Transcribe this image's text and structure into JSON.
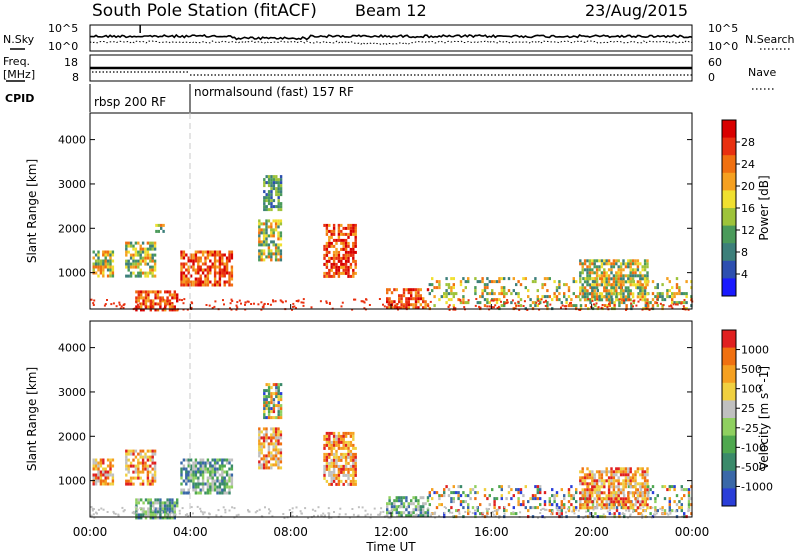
{
  "header": {
    "station": "South Pole Station (fitACF)",
    "beam": "Beam 12",
    "date": "23/Aug/2015"
  },
  "left_labels": {
    "nsky": "N.Sky",
    "freq": "Freq.",
    "freq_unit": "[MHz]",
    "cpid": "CPID"
  },
  "right_labels": {
    "nsearch": "N.Search",
    "nave": "Nave"
  },
  "noise_axis": {
    "top": "10^5",
    "bottom": "10^0"
  },
  "freq_axis": {
    "left_top": "18",
    "left_bottom": "8",
    "right_top": "60",
    "right_bottom": "0"
  },
  "cpid_segments": [
    {
      "label": "rbsp 200 RF",
      "start_hour": 0
    },
    {
      "label": "normalsound (fast) 157 RF",
      "start_hour": 4
    }
  ],
  "xaxis": {
    "title": "Time UT",
    "ticks": [
      "00:00",
      "04:00",
      "08:00",
      "12:00",
      "16:00",
      "20:00",
      "00:00"
    ]
  },
  "chart_data": [
    {
      "type": "heatmap",
      "title": "Power",
      "ylabel": "Slant Range [km]",
      "xlabel": "Time UT",
      "xlim_hours": [
        0,
        24
      ],
      "ylim": [
        180,
        4600
      ],
      "yticks": [
        1000,
        2000,
        3000,
        4000
      ],
      "colorbar": {
        "label": "Power [dB]",
        "ticks": [
          "28",
          "24",
          "20",
          "16",
          "12",
          "8",
          "4"
        ],
        "colors": [
          "#1a1aff",
          "#2d4fb0",
          "#3c7f7a",
          "#4a9a5a",
          "#9ec33a",
          "#f0e030",
          "#f5a020",
          "#f07010",
          "#e83010",
          "#d80000"
        ]
      },
      "echo_regions": [
        {
          "t0": 0.1,
          "t1": 0.9,
          "r0": 900,
          "r1": 1500,
          "level": "mid"
        },
        {
          "t0": 1.4,
          "t1": 2.6,
          "r0": 900,
          "r1": 1700,
          "level": "mid"
        },
        {
          "t0": 2.6,
          "t1": 2.9,
          "r0": 1900,
          "r1": 2100,
          "level": "mid"
        },
        {
          "t0": 3.6,
          "t1": 5.7,
          "r0": 700,
          "r1": 1500,
          "level": "high"
        },
        {
          "t0": 1.8,
          "t1": 3.5,
          "r0": 180,
          "r1": 600,
          "level": "high"
        },
        {
          "t0": 6.7,
          "t1": 7.6,
          "r0": 1300,
          "r1": 2200,
          "level": "mid"
        },
        {
          "t0": 6.9,
          "t1": 7.6,
          "r0": 2400,
          "r1": 3200,
          "level": "low"
        },
        {
          "t0": 9.3,
          "t1": 10.6,
          "r0": 900,
          "r1": 2100,
          "level": "high"
        },
        {
          "t0": 11.8,
          "t1": 13.5,
          "r0": 180,
          "r1": 650,
          "level": "high"
        },
        {
          "t0": 13.5,
          "t1": 24.0,
          "r0": 180,
          "r1": 900,
          "level": "mid"
        },
        {
          "t0": 19.5,
          "t1": 22.2,
          "r0": 400,
          "r1": 1300,
          "level": "mid"
        }
      ]
    },
    {
      "type": "heatmap",
      "title": "Velocity",
      "ylabel": "Slant Range [km]",
      "xlabel": "Time UT",
      "xlim_hours": [
        0,
        24
      ],
      "ylim": [
        180,
        4600
      ],
      "yticks": [
        1000,
        2000,
        3000,
        4000
      ],
      "colorbar": {
        "label": "Velocity [m s^-1]",
        "ticks": [
          "1000",
          "500",
          "100",
          "25",
          "-25",
          "-100",
          "-500",
          "-1000"
        ],
        "colors": [
          "#2a3ed8",
          "#3a68a8",
          "#3a8a6a",
          "#4fa84f",
          "#8fd060",
          "#c0c0c0",
          "#f0d040",
          "#f5a020",
          "#f07010",
          "#e02020"
        ]
      },
      "echo_regions": [
        {
          "t0": 0.1,
          "t1": 0.9,
          "r0": 900,
          "r1": 1500,
          "level": "away"
        },
        {
          "t0": 1.4,
          "t1": 2.6,
          "r0": 900,
          "r1": 1700,
          "level": "away"
        },
        {
          "t0": 3.6,
          "t1": 5.7,
          "r0": 700,
          "r1": 1500,
          "level": "toward"
        },
        {
          "t0": 1.8,
          "t1": 3.5,
          "r0": 180,
          "r1": 600,
          "level": "toward"
        },
        {
          "t0": 6.7,
          "t1": 7.6,
          "r0": 1300,
          "r1": 2200,
          "level": "away"
        },
        {
          "t0": 6.9,
          "t1": 7.6,
          "r0": 2400,
          "r1": 3200,
          "level": "mixed"
        },
        {
          "t0": 9.3,
          "t1": 10.6,
          "r0": 900,
          "r1": 2100,
          "level": "away"
        },
        {
          "t0": 11.8,
          "t1": 13.5,
          "r0": 180,
          "r1": 650,
          "level": "toward"
        },
        {
          "t0": 13.5,
          "t1": 24.0,
          "r0": 180,
          "r1": 900,
          "level": "mixed"
        },
        {
          "t0": 19.5,
          "t1": 22.2,
          "r0": 400,
          "r1": 1300,
          "level": "away"
        }
      ]
    }
  ],
  "colors": {
    "frame": "#000000",
    "dashed_marker": "#c8c8c8",
    "background": "#ffffff"
  }
}
